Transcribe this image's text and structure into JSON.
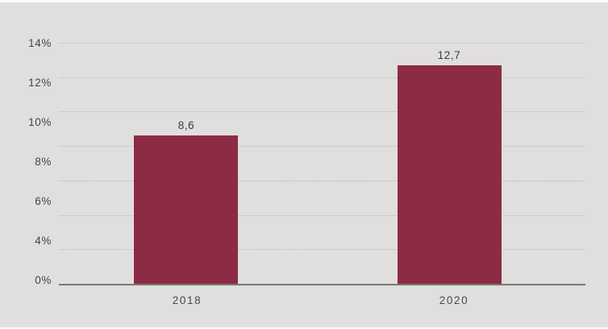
{
  "chart_data": {
    "type": "bar",
    "categories": [
      "2018",
      "2020"
    ],
    "values": [
      8.6,
      12.7
    ],
    "value_labels": [
      "8,6",
      "12,7"
    ],
    "title": "",
    "xlabel": "",
    "ylabel": "",
    "legend": "none",
    "y_axis": {
      "tick_labels": [
        "14%",
        "12%",
        "10%",
        "8%",
        "6%",
        "4%",
        "0%"
      ],
      "ylim": [
        0,
        14
      ],
      "gridline_values": [
        14,
        12,
        10,
        8,
        6,
        4,
        2
      ],
      "gridline_style": "dotted",
      "grid": true
    },
    "colors": {
      "bar": "#8c2b43",
      "background": "#e0dfde",
      "grid": "#b9b7b5",
      "axis_line": "#7a7978",
      "tick_text": "#454445",
      "value_text": "#3c3b3b",
      "edge_strip": "#fcfcfb"
    }
  }
}
